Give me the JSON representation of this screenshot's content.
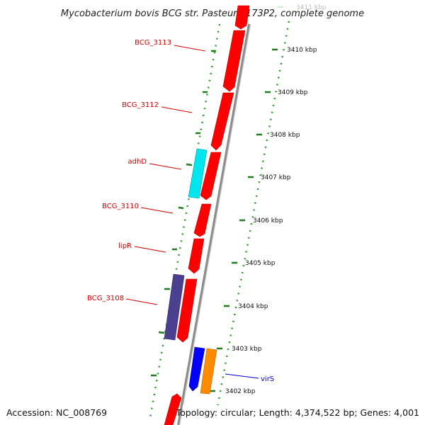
{
  "title": "Mycobacterium bovis BCG str. Pasteur 1173P2, complete genome",
  "footer": {
    "accession": "Accession: NC_008769",
    "summary": "Topology: circular; Length: 4,374,522 bp; Genes: 4,001"
  },
  "colors": {
    "forward_gene": "#ff0000",
    "reverse_gene_red": "#ff0000",
    "cyan_gene": "#00e5ee",
    "purple_gene": "#4b3f8f",
    "blue_gene": "#0000ff",
    "orange_gene": "#ff8c00",
    "backbone": "#8c8c8c",
    "tick_green": "#1e7d1e",
    "label_red": "#cc0000",
    "label_blue": "#0000cc"
  },
  "scale": {
    "unit": "kbp",
    "ticks": [
      {
        "label": "3411 kbp",
        "faded": true
      },
      {
        "label": "3410 kbp"
      },
      {
        "label": "3409 kbp"
      },
      {
        "label": "3408 kbp"
      },
      {
        "label": "3407 kbp"
      },
      {
        "label": "3406 kbp"
      },
      {
        "label": "3405 kbp"
      },
      {
        "label": "3404 kbp"
      },
      {
        "label": "3403 kbp"
      },
      {
        "label": "3402 kbp"
      }
    ]
  },
  "gene_labels": [
    {
      "name": "BCG_3113",
      "color": "label_red"
    },
    {
      "name": "BCG_3112",
      "color": "label_red"
    },
    {
      "name": "adhD",
      "color": "label_red"
    },
    {
      "name": "BCG_3110",
      "color": "label_red"
    },
    {
      "name": "lipR",
      "color": "label_red"
    },
    {
      "name": "BCG_3108",
      "color": "label_red"
    },
    {
      "name": "virS",
      "color": "label_blue"
    }
  ]
}
